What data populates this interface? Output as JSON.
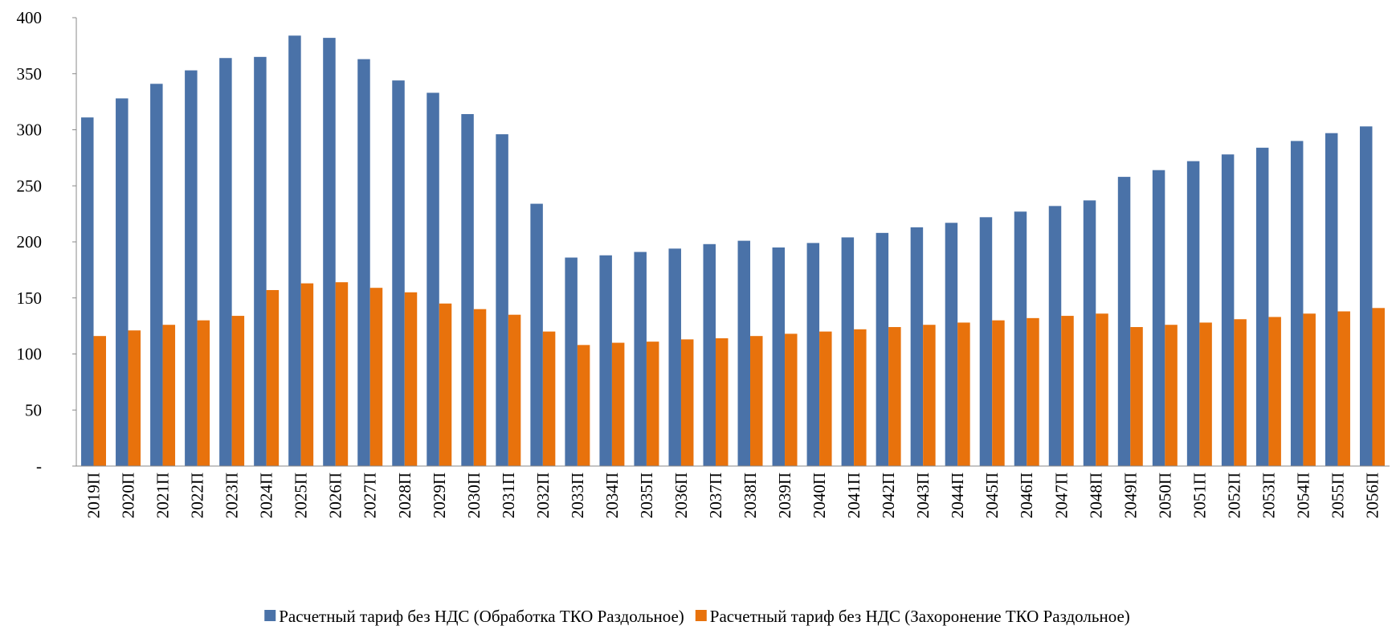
{
  "chart_data": {
    "type": "bar",
    "categories": [
      "2019П",
      "2020П",
      "2021П",
      "2022П",
      "2023П",
      "2024П",
      "2025П",
      "2026П",
      "2027П",
      "2028П",
      "2029П",
      "2030П",
      "2031П",
      "2032П",
      "2033П",
      "2034П",
      "2035П",
      "2036П",
      "2037П",
      "2038П",
      "2039П",
      "2040П",
      "2041П",
      "2042П",
      "2043П",
      "2044П",
      "2045П",
      "2046П",
      "2047П",
      "2048П",
      "2049П",
      "2050П",
      "2051П",
      "2052П",
      "2053П",
      "2054П",
      "2055П",
      "2056П"
    ],
    "series": [
      {
        "name": "Расчетный тариф без НДС (Обработка ТКО Раздольное)",
        "color": "#4a72a8",
        "values": [
          311,
          328,
          341,
          353,
          364,
          365,
          384,
          382,
          363,
          344,
          333,
          314,
          296,
          234,
          186,
          188,
          191,
          194,
          198,
          201,
          195,
          199,
          204,
          208,
          213,
          217,
          222,
          227,
          232,
          237,
          258,
          264,
          272,
          278,
          284,
          290,
          297,
          303
        ]
      },
      {
        "name": "Расчетный тариф без  НДС  (Захоронение ТКО Раздольное)",
        "color": "#e8720c",
        "values": [
          116,
          121,
          126,
          130,
          134,
          157,
          163,
          164,
          159,
          155,
          145,
          140,
          135,
          120,
          108,
          110,
          111,
          113,
          114,
          116,
          118,
          120,
          122,
          124,
          126,
          128,
          130,
          132,
          134,
          136,
          124,
          126,
          128,
          131,
          133,
          136,
          138,
          141
        ]
      }
    ],
    "ylim": [
      0,
      400
    ],
    "yticks": [
      {
        "value": 0,
        "label": "-"
      },
      50,
      100,
      150,
      200,
      250,
      300,
      350,
      400
    ],
    "legend": "bottom"
  }
}
